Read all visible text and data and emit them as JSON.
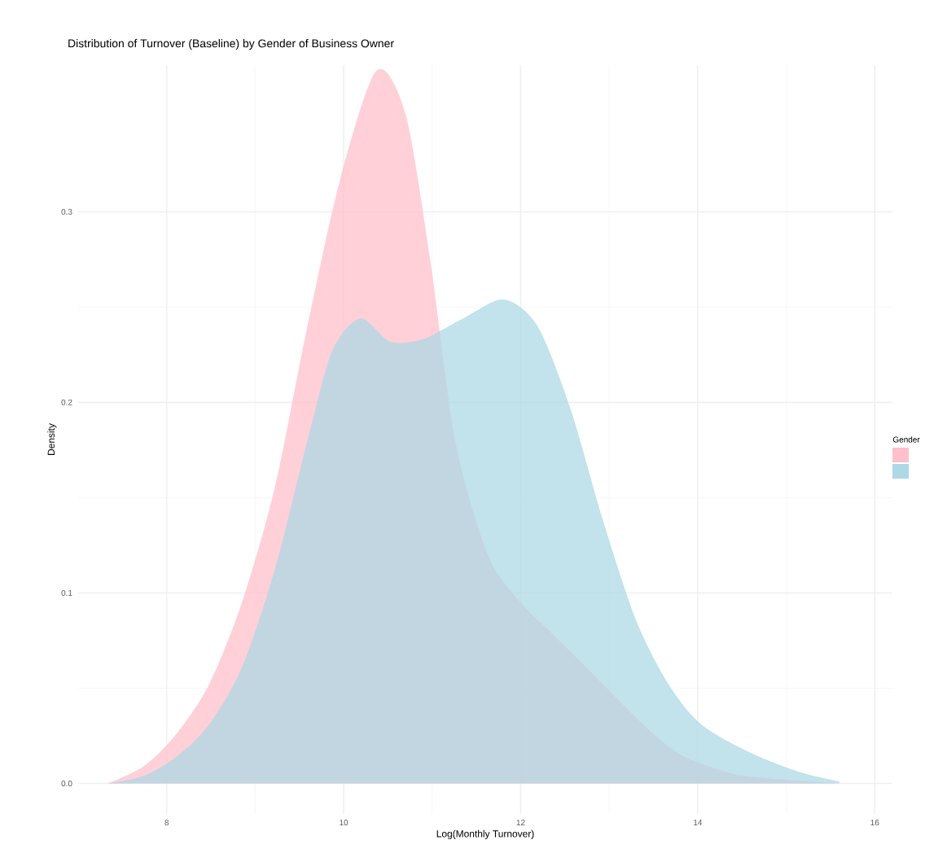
{
  "chart_data": {
    "type": "area",
    "title": "Distribution of Turnover (Baseline) by Gender of Business Owner",
    "xlabel": "Log(Monthly Turnover)",
    "ylabel": "Density",
    "legend_title": "Gender",
    "grid": true,
    "xlim": [
      7.0,
      16.2
    ],
    "ylim": [
      -0.016,
      0.377
    ],
    "xticks": [
      8,
      10,
      12,
      14,
      16
    ],
    "yticks": [
      {
        "value": 0,
        "label": "0.0"
      },
      0.1,
      0.2,
      0.3
    ],
    "series": [
      {
        "color": "#ffc0cb",
        "x": [
          7.33,
          7.74,
          8.11,
          8.48,
          8.85,
          9.22,
          9.59,
          9.96,
          10.37,
          10.7,
          10.98,
          11.26,
          11.63,
          12.0,
          12.37,
          12.74,
          13.1,
          13.5,
          13.85,
          14.4,
          14.96,
          15.6
        ],
        "values": [
          0.0,
          0.009,
          0.026,
          0.052,
          0.095,
          0.155,
          0.24,
          0.317,
          0.374,
          0.351,
          0.274,
          0.18,
          0.12,
          0.095,
          0.078,
          0.061,
          0.044,
          0.026,
          0.014,
          0.005,
          0.002,
          0.0
        ]
      },
      {
        "color": "#add8e6",
        "x": [
          7.33,
          7.74,
          8.11,
          8.48,
          8.85,
          9.22,
          9.59,
          9.87,
          10.19,
          10.52,
          10.89,
          11.35,
          11.81,
          12.19,
          12.56,
          12.93,
          13.3,
          13.67,
          14.04,
          14.6,
          15.15,
          15.6
        ],
        "values": [
          0.0,
          0.004,
          0.014,
          0.031,
          0.061,
          0.112,
          0.18,
          0.227,
          0.244,
          0.232,
          0.233,
          0.244,
          0.254,
          0.24,
          0.197,
          0.138,
          0.086,
          0.052,
          0.031,
          0.016,
          0.006,
          0.001
        ]
      }
    ]
  }
}
